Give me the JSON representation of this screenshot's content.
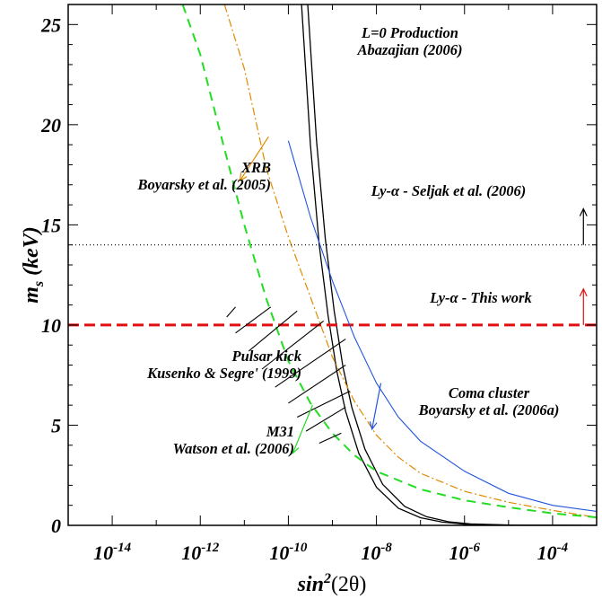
{
  "chart_data": {
    "type": "line",
    "xlabel": "sin²(2θ)",
    "ylabel": "m_s (keV)",
    "xscale": "log",
    "xlim": [
      1e-15,
      0.001
    ],
    "ylim": [
      0,
      26
    ],
    "grid": false,
    "x_ticks": [
      {
        "exp": -14,
        "label": "10",
        "sup": "-14"
      },
      {
        "exp": -12,
        "label": "10",
        "sup": "-12"
      },
      {
        "exp": -10,
        "label": "10",
        "sup": "-10"
      },
      {
        "exp": -8,
        "label": "10",
        "sup": "-8"
      },
      {
        "exp": -6,
        "label": "10",
        "sup": "-6"
      },
      {
        "exp": -4,
        "label": "10",
        "sup": "-4"
      }
    ],
    "y_ticks": [
      0,
      5,
      10,
      15,
      20,
      25
    ],
    "series": [
      {
        "name": "L=0 Production Abazajian (2006) — upper",
        "color": "#000000",
        "dash": "solid",
        "width": 1.3,
        "points": [
          [
            -9.7,
            26
          ],
          [
            -9.5,
            19
          ],
          [
            -9.3,
            14
          ],
          [
            -9.1,
            10.5
          ],
          [
            -8.9,
            7.7
          ],
          [
            -8.7,
            5.7
          ],
          [
            -8.4,
            3.6
          ],
          [
            -8,
            1.9
          ],
          [
            -7.5,
            0.85
          ],
          [
            -7,
            0.38
          ],
          [
            -6.5,
            0.16
          ],
          [
            -6,
            0.06
          ],
          [
            -5,
            0.01
          ],
          [
            -3,
            0
          ]
        ]
      },
      {
        "name": "L=0 Production Abazajian (2006) — lower",
        "color": "#000000",
        "dash": "solid",
        "width": 1.3,
        "points": [
          [
            -9.56,
            26
          ],
          [
            -9.36,
            19.2
          ],
          [
            -9.16,
            14.3
          ],
          [
            -8.96,
            10.7
          ],
          [
            -8.76,
            7.9
          ],
          [
            -8.56,
            5.9
          ],
          [
            -8.26,
            3.8
          ],
          [
            -7.86,
            2.05
          ],
          [
            -7.36,
            0.95
          ],
          [
            -6.86,
            0.43
          ],
          [
            -6.36,
            0.18
          ],
          [
            -5.86,
            0.07
          ],
          [
            -4.86,
            0.01
          ],
          [
            -3,
            0
          ]
        ]
      },
      {
        "name": "XRB Boyarsky et al. (2005)",
        "color": "#e08a00",
        "dash": "9 3 2 3",
        "width": 1.2,
        "points": [
          [
            -11.45,
            26
          ],
          [
            -11,
            22.8
          ],
          [
            -10.5,
            17.8
          ],
          [
            -10,
            14.4
          ],
          [
            -9.5,
            11.4
          ],
          [
            -9,
            8.4
          ],
          [
            -8.5,
            6.2
          ],
          [
            -8,
            4.5
          ],
          [
            -7.5,
            3.4
          ],
          [
            -7,
            2.6
          ],
          [
            -6,
            1.7
          ],
          [
            -5,
            1.15
          ],
          [
            -4,
            0.75
          ],
          [
            -3,
            0.4
          ]
        ]
      },
      {
        "name": "Ly-α - Seljak et al. (2006)",
        "color": "#000000",
        "dash": "1 3",
        "width": 1.1,
        "points": [
          [
            -15,
            14
          ],
          [
            -3,
            14
          ]
        ]
      },
      {
        "name": "Ly-α - This work",
        "color": "#e01010",
        "dash": "12 6",
        "width": 3,
        "points": [
          [
            -15,
            10
          ],
          [
            -3,
            10
          ]
        ]
      },
      {
        "name": "Coma cluster Boyarsky et al. (2006a)",
        "color": "#2255dd",
        "dash": "solid",
        "width": 1.1,
        "points": [
          [
            -10,
            19.2
          ],
          [
            -9.5,
            15.4
          ],
          [
            -9,
            12.2
          ],
          [
            -8.5,
            9.4
          ],
          [
            -8,
            7.1
          ],
          [
            -7.5,
            5.4
          ],
          [
            -7,
            4.2
          ],
          [
            -6,
            2.7
          ],
          [
            -5,
            1.6
          ],
          [
            -4,
            1.0
          ],
          [
            -3,
            0.7
          ]
        ]
      },
      {
        "name": "M31 Watson et al. (2006)",
        "color": "#22dd22",
        "dash": "10 7",
        "width": 2,
        "points": [
          [
            -12.4,
            26
          ],
          [
            -12,
            23.5
          ],
          [
            -11.5,
            19.2
          ],
          [
            -11,
            15
          ],
          [
            -10.5,
            11.3
          ],
          [
            -10,
            8.2
          ],
          [
            -9.5,
            6.1
          ],
          [
            -9,
            4.6
          ],
          [
            -8.5,
            3.5
          ],
          [
            -8,
            2.7
          ],
          [
            -7,
            1.8
          ],
          [
            -6,
            1.25
          ],
          [
            -5,
            0.9
          ],
          [
            -4,
            0.6
          ],
          [
            -3,
            0.4
          ]
        ]
      }
    ],
    "arrows": [
      {
        "target": "XRB Boyarsky et al. (2005)",
        "color": "#e08a00",
        "from": [
          -10.45,
          19.4
        ],
        "to": [
          -11.1,
          17.2
        ]
      },
      {
        "target": "Ly-α - Seljak et al. (2006)",
        "color": "#000000",
        "from": [
          -3.3,
          14
        ],
        "to": [
          -3.3,
          15.8
        ]
      },
      {
        "target": "Ly-α - This work",
        "color": "#e01010",
        "from": [
          -3.3,
          10
        ],
        "to": [
          -3.3,
          11.8
        ]
      },
      {
        "target": "Coma cluster Boyarsky et al. (2006a)",
        "color": "#2255dd",
        "from": [
          -7.9,
          7.1
        ],
        "to": [
          -8.1,
          4.8
        ]
      },
      {
        "target": "M31 Watson et al. (2006)",
        "color": "#22dd22",
        "from": [
          -9.45,
          6.0
        ],
        "to": [
          -9.9,
          3.6
        ]
      }
    ],
    "hatch_region": {
      "label": "Pulsar kick Kusenko & Segre' (1999)",
      "color": "#000000",
      "lines": [
        [
          [
            -11.4,
            10.4
          ],
          [
            -11.2,
            10.9
          ]
        ],
        [
          [
            -11.2,
            9.6
          ],
          [
            -10.4,
            10.9
          ]
        ],
        [
          [
            -10.9,
            8.7
          ],
          [
            -9.8,
            10.7
          ]
        ],
        [
          [
            -10.6,
            7.8
          ],
          [
            -9.2,
            10.2
          ]
        ],
        [
          [
            -10.3,
            6.9
          ],
          [
            -8.7,
            9.3
          ]
        ],
        [
          [
            -10.0,
            6.1
          ],
          [
            -8.7,
            8.0
          ]
        ],
        [
          [
            -9.8,
            5.4
          ],
          [
            -8.6,
            6.7
          ]
        ],
        [
          [
            -9.6,
            4.7
          ],
          [
            -8.7,
            5.9
          ]
        ],
        [
          [
            -9.3,
            4.1
          ],
          [
            -8.8,
            4.6
          ]
        ]
      ]
    },
    "annotations": [
      {
        "lines": [
          "L=0 Production",
          "Abazajian (2006)"
        ],
        "anchor": "middle"
      },
      {
        "lines": [
          "XRB",
          "Boyarsky et al. (2005)"
        ],
        "anchor": "end"
      },
      {
        "lines": [
          "Ly-α - Seljak et al. (2006)"
        ],
        "anchor": "middle"
      },
      {
        "lines": [
          "Ly-α - This work"
        ],
        "anchor": "middle"
      },
      {
        "lines": [
          "Pulsar kick",
          "Kusenko & Segre' (1999)"
        ],
        "anchor": "end"
      },
      {
        "lines": [
          "Coma cluster",
          "Boyarsky et al. (2006a)"
        ],
        "anchor": "middle"
      },
      {
        "lines": [
          "M31",
          "Watson et al. (2006)"
        ],
        "anchor": "end"
      }
    ]
  }
}
